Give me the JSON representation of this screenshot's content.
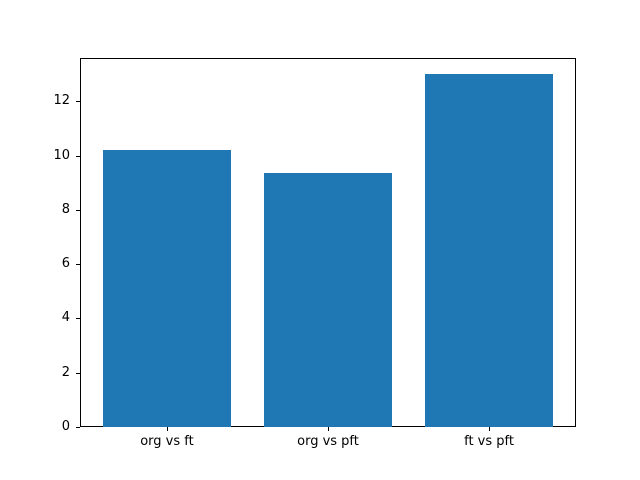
{
  "chart_data": {
    "type": "bar",
    "title": "",
    "xlabel": "",
    "ylabel": "",
    "categories": [
      "org vs ft",
      "org vs pft",
      "ft vs pft"
    ],
    "values": [
      10.2,
      9.35,
      13.0
    ],
    "yticks": [
      0,
      2,
      4,
      6,
      8,
      10,
      12
    ],
    "ylim": [
      0,
      13.6
    ],
    "bar_color": "#1f77b4",
    "grid": false,
    "legend_position": "none"
  }
}
